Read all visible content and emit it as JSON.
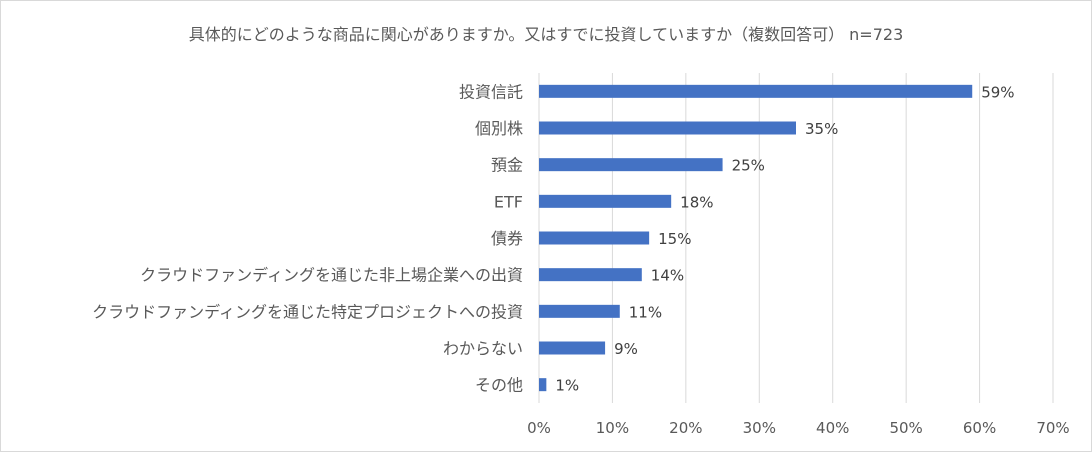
{
  "chart_data": {
    "type": "bar",
    "orientation": "horizontal",
    "title": "具体的にどのような商品に関心がありますか。又はすでに投資していますか（複数回答可） n=723",
    "categories": [
      "投資信託",
      "個別株",
      "預金",
      "ETF",
      "債券",
      "クラウドファンディングを通じた非上場企業への出資",
      "クラウドファンディングを通じた特定プロジェクトへの投資",
      "わからない",
      "その他"
    ],
    "values": [
      59,
      35,
      25,
      18,
      15,
      14,
      11,
      9,
      1
    ],
    "value_labels": [
      "59%",
      "35%",
      "25%",
      "18%",
      "15%",
      "14%",
      "11%",
      "9%",
      "1%"
    ],
    "xlim": [
      0,
      70
    ],
    "xticks": [
      0,
      10,
      20,
      30,
      40,
      50,
      60,
      70
    ],
    "xtick_labels": [
      "0%",
      "10%",
      "20%",
      "30%",
      "40%",
      "50%",
      "60%",
      "70%"
    ],
    "grid": "vertical",
    "legend": "none",
    "bar_color": "#4472c4",
    "grid_color": "#d9d9d9"
  }
}
